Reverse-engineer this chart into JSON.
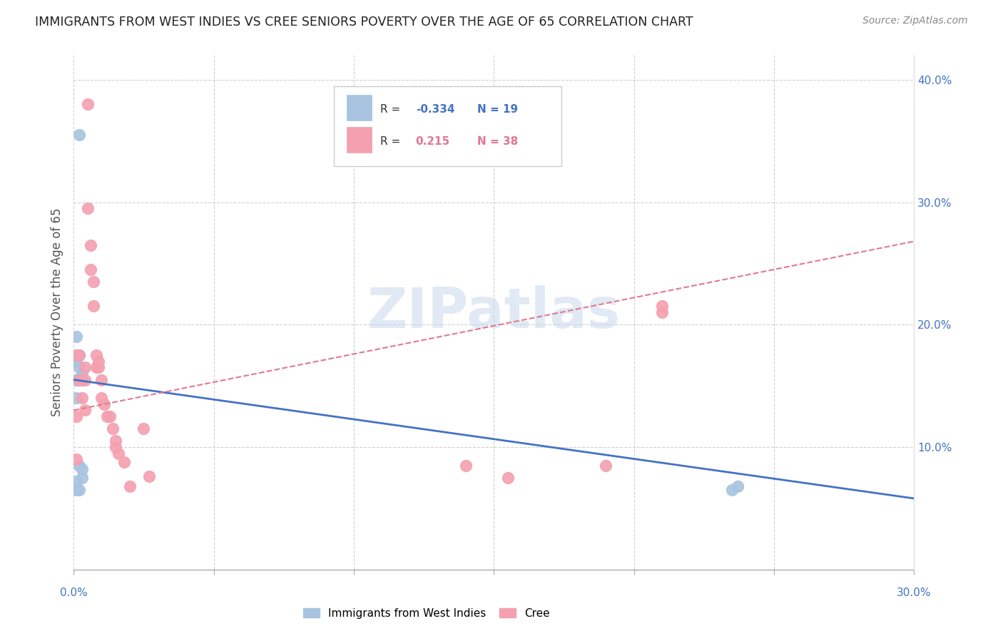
{
  "title": "IMMIGRANTS FROM WEST INDIES VS CREE SENIORS POVERTY OVER THE AGE OF 65 CORRELATION CHART",
  "source": "Source: ZipAtlas.com",
  "ylabel": "Seniors Poverty Over the Age of 65",
  "xlim": [
    0.0,
    0.3
  ],
  "ylim": [
    0.0,
    0.42
  ],
  "watermark": "ZIPatlas",
  "legend_R1": "-0.334",
  "legend_N1": "19",
  "legend_R2": "0.215",
  "legend_N2": "38",
  "color_blue": "#a8c4e0",
  "color_pink": "#f4a0b0",
  "color_blue_line": "#4472c4",
  "color_pink_line": "#e07890",
  "color_blue_text": "#4472c4",
  "color_pink_text": "#e07890",
  "blue_scatter_x": [
    0.002,
    0.001,
    0.002,
    0.001,
    0.002,
    0.003,
    0.001,
    0.001,
    0.003,
    0.002,
    0.001,
    0.002,
    0.003,
    0.003,
    0.001,
    0.001,
    0.002,
    0.235,
    0.237
  ],
  "blue_scatter_y": [
    0.355,
    0.19,
    0.175,
    0.17,
    0.165,
    0.16,
    0.155,
    0.155,
    0.155,
    0.155,
    0.14,
    0.085,
    0.082,
    0.075,
    0.072,
    0.065,
    0.065,
    0.065,
    0.068
  ],
  "pink_scatter_x": [
    0.001,
    0.001,
    0.001,
    0.002,
    0.002,
    0.003,
    0.003,
    0.004,
    0.004,
    0.004,
    0.005,
    0.005,
    0.006,
    0.006,
    0.007,
    0.007,
    0.008,
    0.008,
    0.009,
    0.009,
    0.01,
    0.01,
    0.011,
    0.012,
    0.013,
    0.014,
    0.015,
    0.015,
    0.016,
    0.018,
    0.02,
    0.025,
    0.027,
    0.14,
    0.155,
    0.19,
    0.21,
    0.21
  ],
  "pink_scatter_y": [
    0.175,
    0.125,
    0.09,
    0.175,
    0.155,
    0.155,
    0.14,
    0.165,
    0.155,
    0.13,
    0.38,
    0.295,
    0.265,
    0.245,
    0.235,
    0.215,
    0.175,
    0.165,
    0.17,
    0.165,
    0.155,
    0.14,
    0.135,
    0.125,
    0.125,
    0.115,
    0.105,
    0.1,
    0.095,
    0.088,
    0.068,
    0.115,
    0.076,
    0.085,
    0.075,
    0.085,
    0.215,
    0.21
  ],
  "blue_line_x": [
    0.0,
    0.3
  ],
  "blue_line_y": [
    0.155,
    0.058
  ],
  "pink_line_x": [
    0.0,
    0.3
  ],
  "pink_line_y": [
    0.13,
    0.268
  ],
  "legend_label1": "Immigrants from West Indies",
  "legend_label2": "Cree"
}
